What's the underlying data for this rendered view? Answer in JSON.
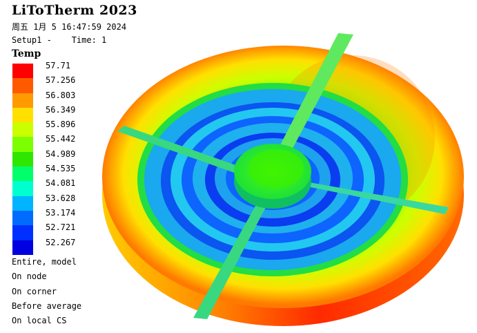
{
  "header": {
    "app_title": "LiToTherm 2023",
    "datetime": "周五 1月 5 16:47:59 2024",
    "setup": "Setup1 -",
    "time": "Time: 1"
  },
  "legend": {
    "title": "Temp",
    "values": [
      "57.71",
      "57.256",
      "56.803",
      "56.349",
      "55.896",
      "55.442",
      "54.989",
      "54.535",
      "54.081",
      "53.628",
      "53.174",
      "52.721",
      "52.267"
    ],
    "colors": [
      "#ff0000",
      "#ff5a00",
      "#ff9a00",
      "#ffe000",
      "#cbff00",
      "#7cff00",
      "#2ee600",
      "#00ff6a",
      "#00ffd0",
      "#00b4ff",
      "#006cff",
      "#0030ff",
      "#0000e0"
    ]
  },
  "info": [
    "Entire, model",
    "On node",
    "On corner",
    "Before average",
    "On local CS"
  ]
}
